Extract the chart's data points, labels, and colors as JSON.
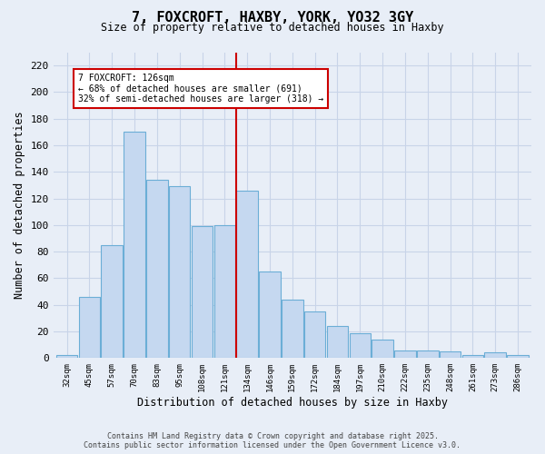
{
  "title_line1": "7, FOXCROFT, HAXBY, YORK, YO32 3GY",
  "title_line2": "Size of property relative to detached houses in Haxby",
  "xlabel": "Distribution of detached houses by size in Haxby",
  "ylabel": "Number of detached properties",
  "categories": [
    "32sqm",
    "45sqm",
    "57sqm",
    "70sqm",
    "83sqm",
    "95sqm",
    "108sqm",
    "121sqm",
    "134sqm",
    "146sqm",
    "159sqm",
    "172sqm",
    "184sqm",
    "197sqm",
    "210sqm",
    "222sqm",
    "235sqm",
    "248sqm",
    "261sqm",
    "273sqm",
    "286sqm"
  ],
  "values": [
    2,
    46,
    85,
    170,
    134,
    129,
    99,
    100,
    126,
    65,
    44,
    35,
    24,
    19,
    14,
    6,
    6,
    5,
    2,
    4,
    2
  ],
  "bar_color": "#c5d8f0",
  "bar_edge_color": "#6baed6",
  "highlight_index": 8,
  "vline_x": 7.5,
  "vline_color": "#cc0000",
  "annotation_text": "7 FOXCROFT: 126sqm\n← 68% of detached houses are smaller (691)\n32% of semi-detached houses are larger (318) →",
  "annotation_box_color": "#ffffff",
  "annotation_box_edge": "#cc0000",
  "ylim": [
    0,
    230
  ],
  "yticks": [
    0,
    20,
    40,
    60,
    80,
    100,
    120,
    140,
    160,
    180,
    200,
    220
  ],
  "background_color": "#e8eef7",
  "grid_color": "#c8d4e8",
  "footer_line1": "Contains HM Land Registry data © Crown copyright and database right 2025.",
  "footer_line2": "Contains public sector information licensed under the Open Government Licence v3.0."
}
